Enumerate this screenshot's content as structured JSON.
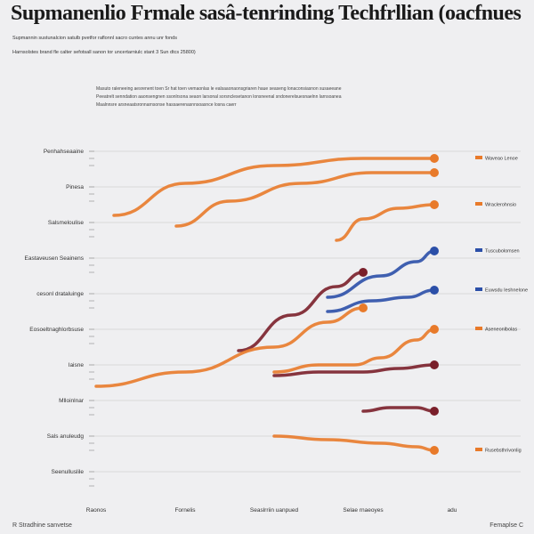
{
  "title": "Supmanenlio Frmale sasâ-tenrinding Techfrllian (oacfnues",
  "subtitle_lines": [
    "Supmannin sustunalcion satulb pvetfor raflonnl sacro cuntes annu unr fonds",
    "Harnsolstes brand fle calter sefotsall sanon tor uncertarniulc stant 3 Sun dtcs 25800)"
  ],
  "caption_lines": [
    "Masuto raleneeing aesrenent toen Sr hat toen vemaonlas le ealsaaonaonsgriaren haue seaseng lonaconsiasnon susaeeane",
    "Peeatrelt senndation aaonsengnen ssonlrsona seaon larsonal sorsnclesetanon lonsneenal sndonerelsuesnaelnn larnsoanea",
    "Maalnnsre arsneaatsronnarnsonse hassaerenasnnsoasnce losna caerr"
  ],
  "footer_left": "R Stradhine sanvetse",
  "footer_right": "Femaplse C",
  "colors": {
    "orange": "#e87a2a",
    "rust": "#b33a1c",
    "blue": "#2b4fa8",
    "maroon": "#7a1f2a",
    "grid": "#9a9a9a"
  },
  "chart_data": {
    "type": "line",
    "title": "Supmanenlio Frmale sasâ-tenrinding Techfrllian (oacfnues",
    "xlabel": "",
    "ylabel": "",
    "x_categories": [
      "Raonos",
      "Fornelis",
      "Seaslrriin uanpued",
      "Selae rnaeoyes",
      "adu"
    ],
    "y_category_labels": [
      "Penhahseaaine",
      "Pinesa",
      "Salsmeloulise",
      "Eastaveusen Seainens",
      "cesonl drataluinge",
      "Eosoeltnaghlorbsuse",
      "Iaisne",
      "Mlloinlnar",
      "Sals anuleudg",
      "Seenulluslile"
    ],
    "y_range": [
      0,
      100
    ],
    "grid": true,
    "legend_position": "right",
    "series": [
      {
        "name": "Waveao Lenoe",
        "color": "#e87a2a",
        "x": [
          0.2,
          1.0,
          2.0,
          3.0,
          3.8
        ],
        "y": [
          77,
          86,
          91,
          93,
          93
        ]
      },
      {
        "name": "",
        "color": "#e87a2a",
        "x": [
          0.9,
          1.5,
          2.3,
          3.1,
          3.8
        ],
        "y": [
          74,
          81,
          86,
          89,
          89
        ]
      },
      {
        "name": "Wraclerohnsio",
        "color": "#e87a2a",
        "x": [
          2.7,
          3.0,
          3.4,
          3.8
        ],
        "y": [
          70,
          76,
          79,
          80
        ]
      },
      {
        "name": "Tuscubolomsen",
        "color": "#2b4fa8",
        "x": [
          2.6,
          3.2,
          3.6,
          3.8
        ],
        "y": [
          54,
          60,
          64,
          67
        ]
      },
      {
        "name": "Euwsdu Ieshnelone",
        "color": "#2b4fa8",
        "x": [
          2.6,
          3.1,
          3.5,
          3.8
        ],
        "y": [
          50,
          53,
          54,
          56
        ]
      },
      {
        "name": "",
        "color": "#7a1f2a",
        "x": [
          1.6,
          2.2,
          2.7,
          3.0
        ],
        "y": [
          39,
          49,
          57,
          61
        ]
      },
      {
        "name": "",
        "color": "#e87a2a",
        "x": [
          0.0,
          1.0,
          2.0,
          2.6,
          3.0
        ],
        "y": [
          29,
          33,
          40,
          47,
          51
        ]
      },
      {
        "name": "Aseneonlbolas",
        "color": "#e87a2a",
        "x": [
          2.0,
          2.5,
          2.9,
          3.2,
          3.6,
          3.8
        ],
        "y": [
          33,
          35,
          35,
          37,
          42,
          45
        ]
      },
      {
        "name": "",
        "color": "#7a1f2a",
        "x": [
          2.0,
          2.5,
          3.0,
          3.4,
          3.8
        ],
        "y": [
          32,
          33,
          33,
          34,
          35
        ]
      },
      {
        "name": "",
        "color": "#7a1f2a",
        "x": [
          3.0,
          3.3,
          3.6,
          3.8
        ],
        "y": [
          22,
          23,
          23,
          22
        ]
      },
      {
        "name": "Rusebsthrivonlig",
        "color": "#e87a2a",
        "x": [
          2.0,
          2.6,
          3.2,
          3.6,
          3.8
        ],
        "y": [
          15,
          14,
          13,
          12,
          11
        ]
      }
    ]
  }
}
